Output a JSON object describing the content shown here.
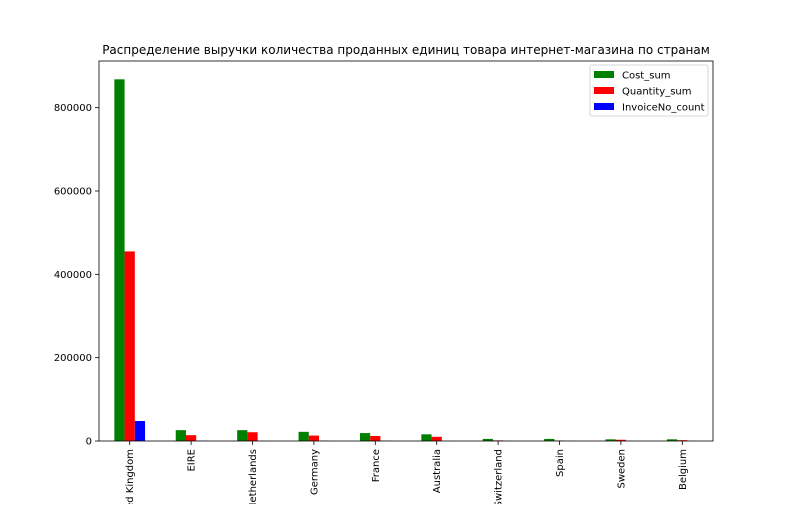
{
  "chart_data": {
    "type": "bar",
    "title": "Распределение выручки количества проданных единиц товара интернет-магазина по странам",
    "xlabel": "",
    "ylabel": "",
    "categories": [
      "United Kingdom",
      "EIRE",
      "Netherlands",
      "Germany",
      "France",
      "Australia",
      "Switzerland",
      "Spain",
      "Sweden",
      "Belgium"
    ],
    "series": [
      {
        "name": "Cost_sum",
        "color": "#008000",
        "values": [
          868000,
          26000,
          26000,
          22000,
          19000,
          16000,
          5000,
          5000,
          4000,
          4000
        ]
      },
      {
        "name": "Quantity_sum",
        "color": "#ff0000",
        "values": [
          455000,
          14000,
          21000,
          13000,
          12000,
          10000,
          1500,
          1200,
          3000,
          2000
        ]
      },
      {
        "name": "InvoiceNo_count",
        "color": "#0000ff",
        "values": [
          48000,
          500,
          300,
          600,
          400,
          200,
          200,
          200,
          100,
          150
        ]
      }
    ],
    "ylim": [
      0,
      912000
    ],
    "yticks": [
      0,
      200000,
      400000,
      600000,
      800000
    ],
    "ytick_labels": [
      "0",
      "200000",
      "400000",
      "600000",
      "800000"
    ],
    "grid": false,
    "legend_position": "top-right",
    "xtick_rotation": "vertical"
  }
}
